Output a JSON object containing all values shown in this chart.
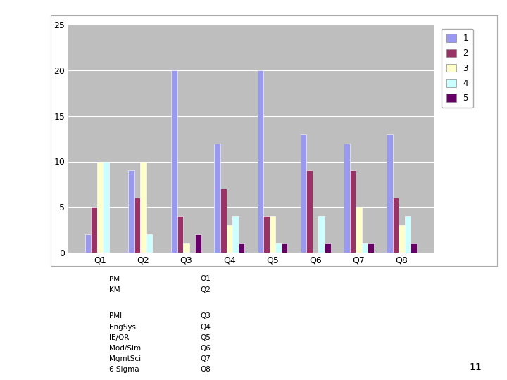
{
  "categories": [
    "Q1",
    "Q2",
    "Q3",
    "Q4",
    "Q5",
    "Q6",
    "Q7",
    "Q8"
  ],
  "series": {
    "1": [
      2,
      9,
      20,
      12,
      20,
      13,
      12,
      13
    ],
    "2": [
      5,
      6,
      4,
      7,
      4,
      9,
      9,
      6
    ],
    "3": [
      10,
      10,
      1,
      3,
      4,
      0,
      5,
      3
    ],
    "4": [
      10,
      2,
      0,
      4,
      1,
      4,
      1,
      4
    ],
    "5": [
      0,
      0,
      2,
      1,
      1,
      1,
      1,
      1
    ]
  },
  "colors": {
    "1": "#9999EE",
    "2": "#993366",
    "3": "#FFFFCC",
    "4": "#CCFFFF",
    "5": "#660066"
  },
  "legend_labels": [
    "1",
    "2",
    "3",
    "4",
    "5"
  ],
  "ylim": [
    0,
    25
  ],
  "yticks": [
    0,
    5,
    10,
    15,
    20,
    25
  ],
  "plot_bg_color": "#BEBEBE",
  "fig_bg_color": "#FFFFFF",
  "bar_width": 0.14,
  "ann_left": [
    "PM",
    "KM",
    "",
    "PMI",
    "EngSys",
    "IE/OR",
    "Mod/Sim",
    "MgmtSci",
    "6 Sigma"
  ],
  "ann_right": [
    "Q1",
    "Q2",
    "",
    "Q3",
    "Q4",
    "Q5",
    "Q6",
    "Q7",
    "Q8"
  ],
  "page_number": "11"
}
